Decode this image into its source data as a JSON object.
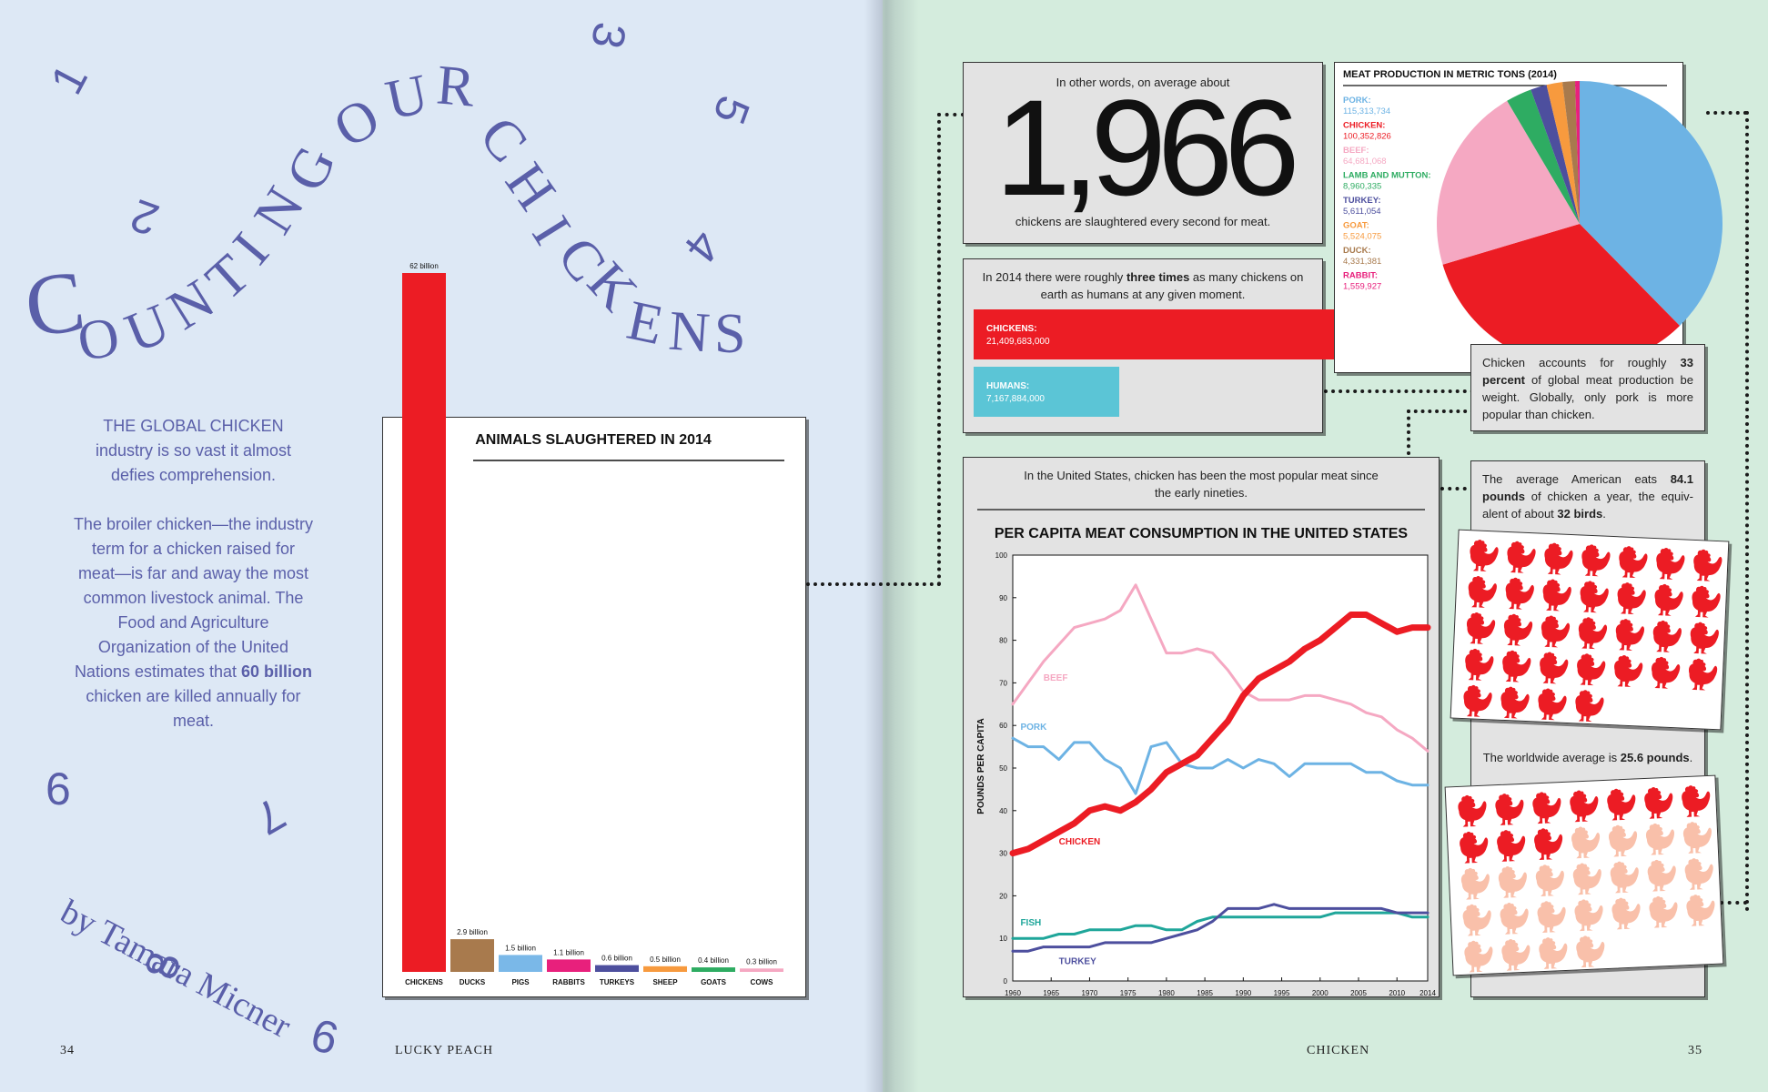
{
  "spread": {
    "left_folio": "34",
    "left_running_head": "LUCKY PEACH",
    "right_running_head": "CHICKEN",
    "right_folio": "35"
  },
  "title_letters": [
    "C",
    "O",
    "U",
    "N",
    "T",
    "I",
    "N",
    "G",
    "O",
    "U",
    "R",
    "C",
    "H",
    "I",
    "C",
    "K",
    "E",
    "N",
    "S"
  ],
  "deco_numbers": [
    "1",
    "2",
    "3",
    "4",
    "5",
    "6",
    "7",
    "8",
    "9"
  ],
  "intro": {
    "p1": "THE GLOBAL CHICKEN industry is so vast it almost defies comprehension.",
    "p2_before": "The broiler chicken—the industry term for a chicken raised for meat—is far and away the most common live­stock animal. The Food and Agriculture Organization of the United Nations estimates that ",
    "p2_bold": "60 billion",
    "p2_after": " chicken are killed annually for meat."
  },
  "byline": "by Tamara Micner",
  "per_second": {
    "lead": "In other words, on average about",
    "number": "1,966",
    "tail": "chickens are slaughtered every second for meat."
  },
  "population": {
    "text_before": "In 2014 there were roughly ",
    "text_bold": "three times",
    "text_after": " as many chickens on earth as humans at any given moment."
  },
  "chicken_share": {
    "text_before": "Chicken accounts for roughly ",
    "text_bold": "33 percent",
    "text_after": " of global meat production be weight. Globally, only pork is more popular than chicken."
  },
  "us_intro": "In the United States, chicken has been the most popular meat since the early nineties.",
  "american_eats": {
    "text_before": "The average American eats ",
    "text_bold1": "84.1 pounds",
    "text_mid": " of chicken a year, the equiv­alent of about ",
    "text_bold2": "32 birds",
    "text_after": "."
  },
  "worldwide": {
    "text_before": "The worldwide average is ",
    "text_bold": "25.6 pounds",
    "text_after": "."
  },
  "colors": {
    "title_purple": "#5a5fa9",
    "chicken_red": "#ec1c24",
    "chicken_light": "#f9c0aa"
  },
  "icons": {
    "hen": "hen-icon"
  },
  "chart_data": [
    {
      "type": "bar",
      "title": "ANIMALS SLAUGHTERED IN 2014",
      "categories": [
        "CHICKENS",
        "DUCKS",
        "PIGS",
        "RABBITS",
        "TURKEYS",
        "SHEEP",
        "GOATS",
        "COWS"
      ],
      "values": [
        62,
        2.9,
        1.5,
        1.1,
        0.6,
        0.5,
        0.4,
        0.3
      ],
      "value_labels": [
        "62 billion",
        "2.9 billion",
        "1.5 billion",
        "1.1 billion",
        "0.6 billion",
        "0.5 billion",
        "0.4 billion",
        "0.3 billion"
      ],
      "colors": [
        "#ec1c24",
        "#a87a4d",
        "#7ab8e8",
        "#e8207c",
        "#4d4f9e",
        "#f79a3e",
        "#2eac62",
        "#f5a8c2"
      ],
      "ylim": [
        0,
        62
      ]
    },
    {
      "type": "pie",
      "title": "MEAT PRODUCTION IN METRIC TONS (2014)",
      "legend": "left",
      "slices": [
        {
          "name": "PORK:",
          "value": 115313734,
          "label": "115,313,734",
          "color": "#6db3e4"
        },
        {
          "name": "CHICKEN:",
          "value": 100352826,
          "label": "100,352,826",
          "color": "#ec1c24"
        },
        {
          "name": "BEEF:",
          "value": 64681068,
          "label": "64,681,068",
          "color": "#f5a8c2"
        },
        {
          "name": "LAMB AND MUTTON:",
          "value": 8960335,
          "label": "8,960,335",
          "color": "#2eac62"
        },
        {
          "name": "TURKEY:",
          "value": 5611054,
          "label": "5,611,054",
          "color": "#4d4f9e"
        },
        {
          "name": "GOAT:",
          "value": 5524075,
          "label": "5,524,075",
          "color": "#f79a3e"
        },
        {
          "name": "DUCK:",
          "value": 4331381,
          "label": "4,331,381",
          "color": "#a87a4d"
        },
        {
          "name": "RABBIT:",
          "value": 1559927,
          "label": "1,559,927",
          "color": "#e8207c"
        }
      ]
    },
    {
      "type": "bar",
      "orientation": "horizontal",
      "bars": [
        {
          "name": "CHICKENS:",
          "value": 21409683000,
          "label": "21,409,683,000",
          "color": "#ec1c24"
        },
        {
          "name": "HUMANS:",
          "value": 7167884000,
          "label": "7,167,884,000",
          "color": "#5bc5d6"
        }
      ]
    },
    {
      "type": "line",
      "title": "PER CAPITA MEAT CONSUMPTION IN THE UNITED STATES",
      "ylabel": "POUNDS PER CAPITA",
      "xlim": [
        1960,
        2014
      ],
      "ylim": [
        0,
        100
      ],
      "xticks": [
        1960,
        1965,
        1970,
        1975,
        1980,
        1985,
        1990,
        1995,
        2000,
        2005,
        2010,
        2014
      ],
      "yticks": [
        0,
        10,
        20,
        30,
        40,
        50,
        60,
        70,
        80,
        90,
        100
      ],
      "x": [
        1960,
        1962,
        1964,
        1966,
        1968,
        1970,
        1972,
        1974,
        1976,
        1978,
        1980,
        1982,
        1984,
        1986,
        1988,
        1990,
        1992,
        1994,
        1996,
        1998,
        2000,
        2002,
        2004,
        2006,
        2008,
        2010,
        2012,
        2014
      ],
      "series": [
        {
          "name": "BEEF",
          "color": "#f5a8c2",
          "width": 3,
          "values": [
            65,
            70,
            75,
            79,
            83,
            84,
            85,
            87,
            93,
            85,
            77,
            77,
            78,
            77,
            73,
            68,
            66,
            66,
            66,
            67,
            67,
            66,
            65,
            63,
            62,
            59,
            57,
            54
          ]
        },
        {
          "name": "PORK",
          "color": "#6db3e4",
          "width": 3,
          "values": [
            57,
            55,
            55,
            52,
            56,
            56,
            52,
            50,
            44,
            55,
            56,
            51,
            50,
            50,
            52,
            50,
            52,
            51,
            48,
            51,
            51,
            51,
            51,
            49,
            49,
            47,
            46,
            46
          ]
        },
        {
          "name": "CHICKEN",
          "color": "#ec1c24",
          "width": 7,
          "values": [
            30,
            31,
            33,
            35,
            37,
            40,
            41,
            40,
            42,
            45,
            49,
            51,
            53,
            57,
            61,
            67,
            71,
            73,
            75,
            78,
            80,
            83,
            86,
            86,
            84,
            82,
            83,
            83
          ]
        },
        {
          "name": "FISH",
          "color": "#1fa69a",
          "width": 3,
          "values": [
            10,
            10,
            10,
            11,
            11,
            12,
            12,
            12,
            13,
            13,
            12,
            12,
            14,
            15,
            15,
            15,
            15,
            15,
            15,
            15,
            15,
            16,
            16,
            16,
            16,
            16,
            15,
            15
          ]
        },
        {
          "name": "TURKEY",
          "color": "#4d4f9e",
          "width": 3,
          "values": [
            7,
            7,
            8,
            8,
            8,
            8,
            9,
            9,
            9,
            9,
            10,
            11,
            12,
            14,
            17,
            17,
            17,
            18,
            17,
            17,
            17,
            17,
            17,
            17,
            17,
            16,
            16,
            16
          ]
        }
      ]
    }
  ]
}
